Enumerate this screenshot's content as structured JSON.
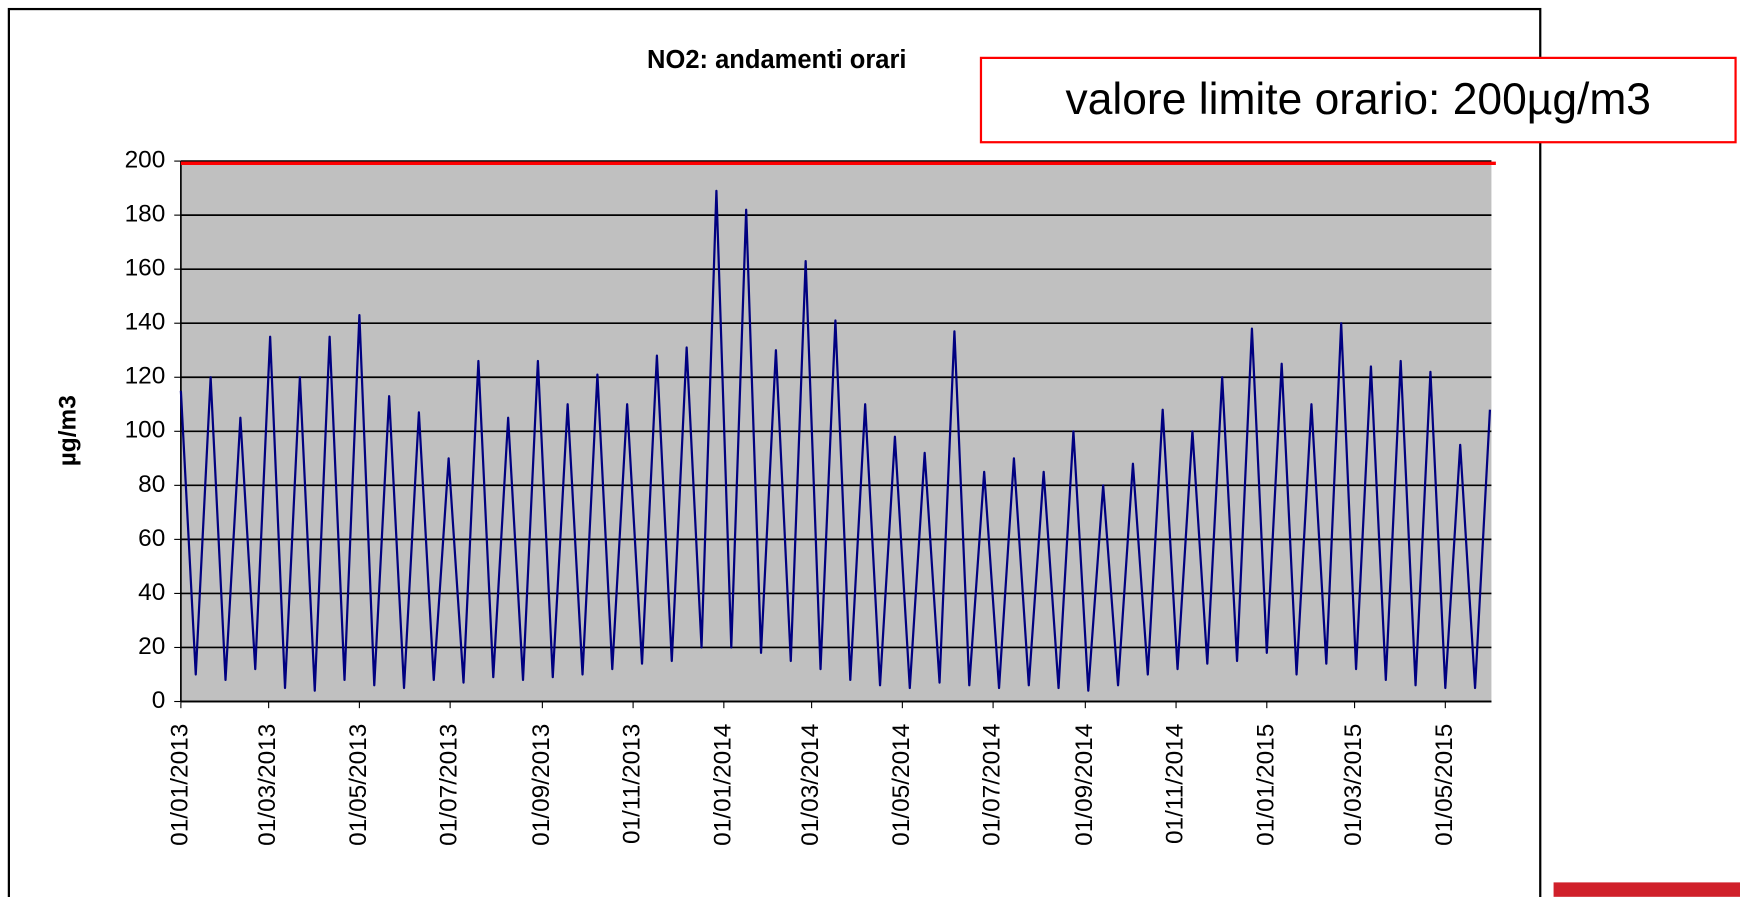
{
  "chart_data": {
    "type": "line",
    "title": "NO2: andamenti orari",
    "y_label": "µg/m3",
    "annotation": "valore limite orario: 200µg/m3",
    "limit": 200,
    "limit_color": "#ff0000",
    "xlim": [
      "01/01/2013",
      "01/06/2015"
    ],
    "xticks": [
      "01/01/2013",
      "01/03/2013",
      "01/05/2013",
      "01/07/2013",
      "01/09/2013",
      "01/11/2013",
      "01/01/2014",
      "01/03/2014",
      "01/05/2014",
      "01/07/2014",
      "01/09/2014",
      "01/11/2014",
      "01/01/2015",
      "01/03/2015",
      "01/05/2015"
    ],
    "ylim": [
      0,
      200
    ],
    "yticks": [
      0,
      20,
      40,
      60,
      80,
      100,
      120,
      140,
      160,
      180,
      200
    ],
    "grid": true,
    "background": "#c0c0c0",
    "x": [
      "01/01/2013",
      "11/01/2013",
      "21/01/2013",
      "31/01/2013",
      "10/02/2013",
      "20/02/2013",
      "02/03/2013",
      "12/03/2013",
      "22/03/2013",
      "01/04/2013",
      "11/04/2013",
      "21/04/2013",
      "01/05/2013",
      "11/05/2013",
      "21/05/2013",
      "31/05/2013",
      "10/06/2013",
      "20/06/2013",
      "30/06/2013",
      "10/07/2013",
      "20/07/2013",
      "30/07/2013",
      "09/08/2013",
      "19/08/2013",
      "29/08/2013",
      "08/09/2013",
      "18/09/2013",
      "28/09/2013",
      "08/10/2013",
      "18/10/2013",
      "28/10/2013",
      "07/11/2013",
      "17/11/2013",
      "27/11/2013",
      "07/12/2013",
      "17/12/2013",
      "27/12/2013",
      "06/01/2014",
      "16/01/2014",
      "26/01/2014",
      "05/02/2014",
      "15/02/2014",
      "25/02/2014",
      "07/03/2014",
      "17/03/2014",
      "27/03/2014",
      "06/04/2014",
      "16/04/2014",
      "26/04/2014",
      "06/05/2014",
      "16/05/2014",
      "26/05/2014",
      "05/06/2014",
      "15/06/2014",
      "25/06/2014",
      "05/07/2014",
      "15/07/2014",
      "25/07/2014",
      "04/08/2014",
      "14/08/2014",
      "24/08/2014",
      "03/09/2014",
      "13/09/2014",
      "23/09/2014",
      "03/10/2014",
      "13/10/2014",
      "23/10/2014",
      "02/11/2014",
      "12/11/2014",
      "22/11/2014",
      "02/12/2014",
      "12/12/2014",
      "22/12/2014",
      "01/01/2015",
      "11/01/2015",
      "21/01/2015",
      "31/01/2015",
      "10/02/2015",
      "20/02/2015",
      "02/03/2015",
      "12/03/2015",
      "22/03/2015",
      "01/04/2015",
      "11/04/2015",
      "21/04/2015",
      "01/05/2015",
      "11/05/2015",
      "21/05/2015",
      "31/05/2015"
    ],
    "series": [
      {
        "name": "NO2",
        "color": "#000080",
        "values": [
          115,
          10,
          120,
          8,
          105,
          12,
          135,
          5,
          120,
          4,
          135,
          8,
          143,
          6,
          113,
          5,
          107,
          8,
          90,
          7,
          126,
          9,
          105,
          8,
          126,
          9,
          110,
          10,
          121,
          12,
          110,
          14,
          128,
          15,
          131,
          20,
          189,
          20,
          182,
          18,
          130,
          15,
          163,
          12,
          141,
          8,
          110,
          6,
          98,
          5,
          92,
          7,
          137,
          6,
          85,
          5,
          90,
          6,
          85,
          5,
          100,
          4,
          80,
          6,
          88,
          10,
          108,
          12,
          100,
          14,
          120,
          15,
          138,
          18,
          125,
          10,
          110,
          14,
          140,
          12,
          124,
          8,
          126,
          6,
          122,
          5,
          95,
          5,
          108
        ]
      }
    ]
  }
}
